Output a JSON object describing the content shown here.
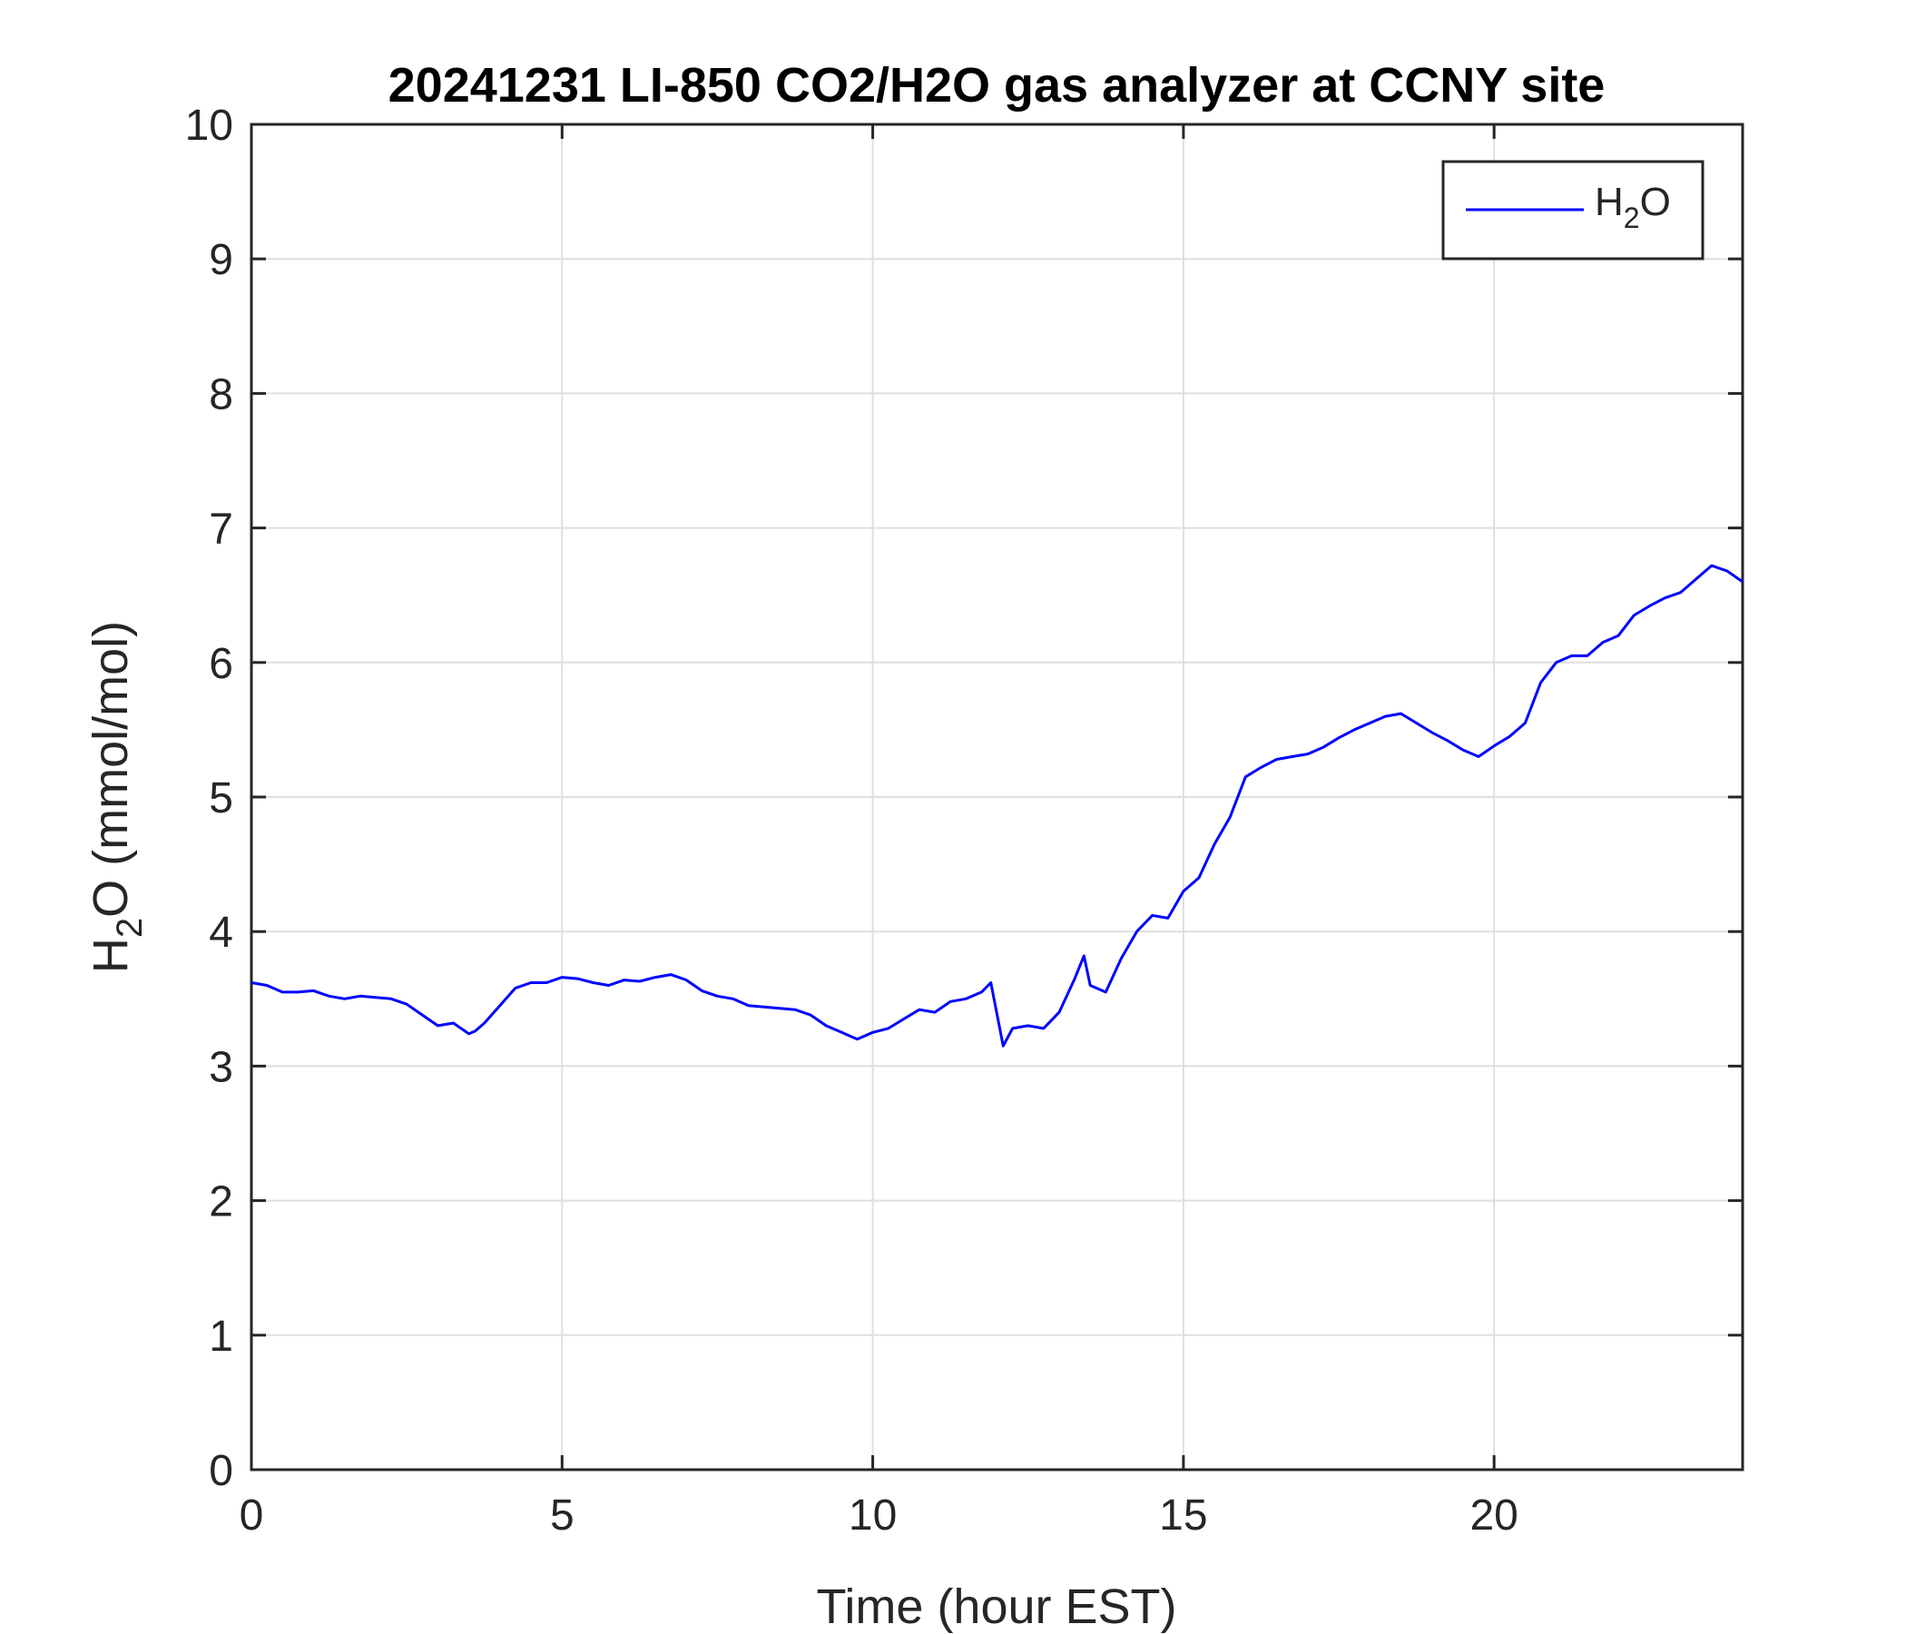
{
  "chart_data": {
    "type": "line",
    "title": "20241231 LI-850 CO2/H2O gas analyzer at CCNY site",
    "xlabel": "Time (hour EST)",
    "ylabel": {
      "prefix": "H",
      "sub": "2",
      "suffix": "O (mmol/mol)"
    },
    "xlim": [
      0,
      24
    ],
    "ylim": [
      0,
      10
    ],
    "xticks": [
      0,
      5,
      10,
      15,
      20
    ],
    "yticks": [
      0,
      1,
      2,
      3,
      4,
      5,
      6,
      7,
      8,
      9,
      10
    ],
    "grid": true,
    "legend_position": "top-right",
    "colors": {
      "series": "#0000ff",
      "axis": "#262626",
      "grid": "#dfdfdf"
    },
    "series": [
      {
        "name": {
          "prefix": "H",
          "sub": "2",
          "suffix": "O"
        },
        "x": [
          0,
          0.25,
          0.5,
          0.75,
          1.0,
          1.25,
          1.5,
          1.75,
          2.0,
          2.25,
          2.5,
          2.75,
          3.0,
          3.25,
          3.5,
          3.6,
          3.75,
          4.0,
          4.25,
          4.5,
          4.75,
          5.0,
          5.25,
          5.5,
          5.75,
          6.0,
          6.25,
          6.5,
          6.75,
          7.0,
          7.25,
          7.5,
          7.75,
          8.0,
          8.25,
          8.5,
          8.75,
          9.0,
          9.25,
          9.5,
          9.75,
          10.0,
          10.25,
          10.5,
          10.75,
          11.0,
          11.25,
          11.5,
          11.75,
          11.9,
          12.1,
          12.25,
          12.5,
          12.75,
          13.0,
          13.25,
          13.4,
          13.5,
          13.75,
          14.0,
          14.25,
          14.5,
          14.75,
          15.0,
          15.25,
          15.5,
          15.75,
          16.0,
          16.25,
          16.5,
          16.75,
          17.0,
          17.25,
          17.5,
          17.75,
          18.0,
          18.25,
          18.5,
          18.75,
          19.0,
          19.25,
          19.5,
          19.75,
          20.0,
          20.25,
          20.5,
          20.75,
          21.0,
          21.25,
          21.5,
          21.75,
          22.0,
          22.25,
          22.5,
          22.75,
          23.0,
          23.25,
          23.5,
          23.75,
          24.0
        ],
        "y": [
          3.62,
          3.6,
          3.55,
          3.55,
          3.56,
          3.52,
          3.5,
          3.52,
          3.51,
          3.5,
          3.46,
          3.38,
          3.3,
          3.32,
          3.24,
          3.26,
          3.32,
          3.45,
          3.58,
          3.62,
          3.62,
          3.66,
          3.65,
          3.62,
          3.6,
          3.64,
          3.63,
          3.66,
          3.68,
          3.64,
          3.56,
          3.52,
          3.5,
          3.45,
          3.44,
          3.43,
          3.42,
          3.38,
          3.3,
          3.25,
          3.2,
          3.25,
          3.28,
          3.35,
          3.42,
          3.4,
          3.48,
          3.5,
          3.55,
          3.62,
          3.15,
          3.28,
          3.3,
          3.28,
          3.4,
          3.65,
          3.82,
          3.6,
          3.55,
          3.8,
          4.0,
          4.12,
          4.1,
          4.3,
          4.4,
          4.65,
          4.85,
          5.15,
          5.22,
          5.28,
          5.3,
          5.32,
          5.37,
          5.44,
          5.5,
          5.55,
          5.6,
          5.62,
          5.55,
          5.48,
          5.42,
          5.35,
          5.3,
          5.38,
          5.45,
          5.55,
          5.85,
          6.0,
          6.05,
          6.05,
          6.15,
          6.2,
          6.35,
          6.42,
          6.48,
          6.52,
          6.62,
          6.72,
          6.68,
          6.6
        ]
      }
    ]
  }
}
